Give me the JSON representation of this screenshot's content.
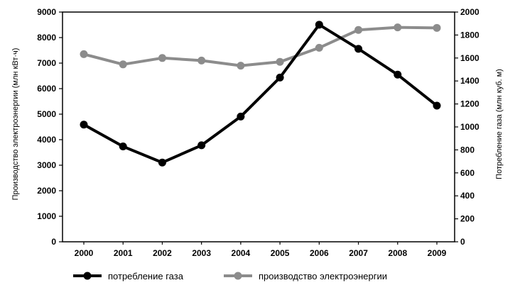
{
  "chart_data": {
    "type": "line",
    "x": [
      "2000",
      "2001",
      "2002",
      "2003",
      "2004",
      "2005",
      "2006",
      "2007",
      "2008",
      "2009"
    ],
    "series": [
      {
        "name": "потребление газа",
        "axis": "right",
        "color": "#000000",
        "values": [
          1020,
          830,
          690,
          840,
          1090,
          1430,
          1890,
          1680,
          1455,
          1185
        ]
      },
      {
        "name": "производство электроэнергии",
        "axis": "left",
        "color": "#8c8c8c",
        "values": [
          7350,
          6950,
          7200,
          7100,
          6900,
          7050,
          7600,
          8300,
          8400,
          8380
        ]
      }
    ],
    "y_left": {
      "label": "Производство электроэнергии (млн кВт·ч)",
      "ylim": [
        0,
        9000
      ],
      "ticks": [
        "0",
        "1000",
        "2000",
        "3000",
        "4000",
        "5000",
        "6000",
        "7000",
        "8000",
        "9000"
      ]
    },
    "y_right": {
      "label": "Потребление газа (млн куб. м)",
      "ylim": [
        0,
        2000
      ],
      "ticks": [
        "0",
        "200",
        "400",
        "600",
        "800",
        "1000",
        "1200",
        "1400",
        "1600",
        "1800",
        "2000"
      ]
    },
    "grid": false,
    "legend_position": "bottom"
  }
}
